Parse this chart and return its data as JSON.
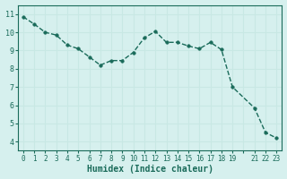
{
  "x": [
    0,
    1,
    2,
    3,
    4,
    5,
    6,
    7,
    8,
    9,
    10,
    11,
    12,
    13,
    14,
    15,
    16,
    17,
    18,
    19,
    21,
    22,
    23
  ],
  "y": [
    10.85,
    10.45,
    10.0,
    9.85,
    9.3,
    9.1,
    8.65,
    8.2,
    8.45,
    8.45,
    8.9,
    9.7,
    10.05,
    9.45,
    9.45,
    9.25,
    9.1,
    9.45,
    9.05,
    7.0,
    5.85,
    4.5,
    4.2
  ],
  "xlabel": "Humidex (Indice chaleur)",
  "line_color": "#1a6b5a",
  "marker_color": "#1a6b5a",
  "bg_color": "#d6f0ee",
  "grid_color": "#c8e8e4",
  "axes_color": "#1a6b5a",
  "ylim": [
    3.5,
    11.5
  ],
  "xlim": [
    -0.5,
    23.5
  ],
  "yticks": [
    4,
    5,
    6,
    7,
    8,
    9,
    10,
    11
  ],
  "xticks": [
    0,
    1,
    2,
    3,
    4,
    5,
    6,
    7,
    8,
    9,
    10,
    11,
    12,
    13,
    14,
    15,
    16,
    17,
    18,
    19,
    20,
    21,
    22,
    23
  ],
  "xtick_labels": [
    "0",
    "1",
    "2",
    "3",
    "4",
    "5",
    "6",
    "7",
    "8",
    "9",
    "10",
    "11",
    "12",
    "13",
    "14",
    "15",
    "16",
    "17",
    "18",
    "19",
    "",
    "21",
    "22",
    "23"
  ]
}
